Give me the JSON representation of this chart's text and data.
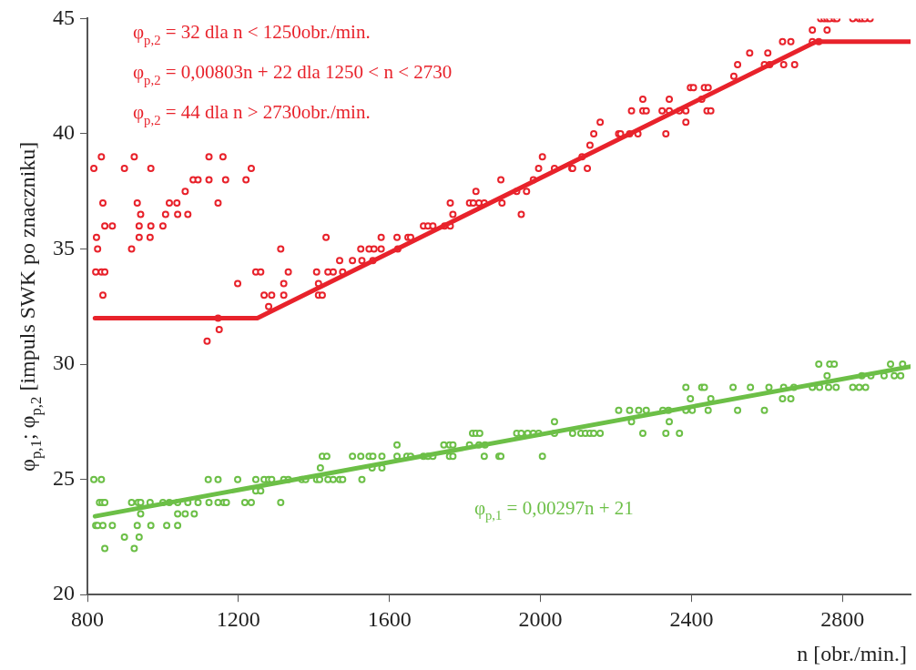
{
  "chart_data": {
    "type": "scatter",
    "xlabel": "n [obr./min.]",
    "ylabel": "φ$_{p,1}$; φ$_{p,2}$ [impuls SWK po znaczniku]",
    "xlim": [
      800,
      2980
    ],
    "xticks": [
      800,
      1200,
      1600,
      2000,
      2400,
      2800
    ],
    "ylim": [
      20,
      45
    ],
    "yticks": [
      20,
      25,
      30,
      35,
      40,
      45
    ],
    "marker": "circle",
    "legend": false,
    "annotations": [
      "φ$_{p,2}$ = 32 dla n < 1250obr./min.",
      "φ$_{p,2}$ = 0,00803n + 22 dla 1250 < n < 2730",
      "φ$_{p,2}$ = 44 dla n > 2730obr./min.",
      "φ$_{p,1}$ = 0,00297n + 21"
    ],
    "series": [
      {
        "color": "#e8222b",
        "x": [
          817,
          837,
          824,
          827,
          822,
          837,
          846,
          841,
          846,
          866,
          841,
          898,
          924,
          917,
          932,
          941,
          937,
          937,
          968,
          968,
          966,
          1000,
          1007,
          1017,
          1037,
          1039,
          1059,
          1066,
          1080,
          1093,
          1122,
          1122,
          1146,
          1159,
          1166,
          1220,
          1234,
          1198,
          1117,
          1149,
          1146,
          1246,
          1259,
          1268,
          1288,
          1280,
          1312,
          1320,
          1320,
          1332,
          1407,
          1437,
          1451,
          1476,
          1412,
          1412,
          1422,
          1432,
          1468,
          1502,
          1524,
          1527,
          1546,
          1559,
          1556,
          1578,
          1578,
          1620,
          1622,
          1649,
          1656,
          1690,
          1702,
          1715,
          1746,
          1761,
          1761,
          1768,
          1812,
          1822,
          1829,
          1837,
          1851,
          1895,
          1898,
          1937,
          1949,
          1963,
          1981,
          1995,
          2005,
          2037,
          2083,
          2085,
          2110,
          2124,
          2131,
          2141,
          2158,
          2207,
          2212,
          2236,
          2241,
          2258,
          2271,
          2271,
          2280,
          2322,
          2332,
          2341,
          2341,
          2368,
          2385,
          2385,
          2397,
          2405,
          2427,
          2434,
          2444,
          2441,
          2451,
          2512,
          2522,
          2554,
          2593,
          2602,
          2607,
          2641,
          2644,
          2663,
          2673,
          2720,
          2720,
          2737,
          2759,
          2742,
          2751,
          2759,
          2766,
          2778,
          2785,
          2827,
          2844,
          2851,
          2859,
          2873
        ],
        "values": [
          38.5,
          39,
          35.5,
          35,
          34,
          34,
          34,
          37,
          36,
          36,
          33,
          38.5,
          39,
          35,
          37,
          36.5,
          36,
          35.5,
          38.5,
          36,
          35.5,
          36,
          36.5,
          37,
          37,
          36.5,
          37.5,
          36.5,
          38,
          38,
          39,
          38,
          37,
          39,
          38,
          38,
          38.5,
          33.5,
          31,
          31.5,
          32,
          34,
          34,
          33,
          33,
          32.5,
          35,
          33.5,
          33,
          34,
          34,
          34,
          34,
          34,
          33.5,
          33,
          33,
          35.5,
          34.5,
          34.5,
          35,
          34.5,
          35,
          35,
          34.5,
          35.5,
          35,
          35.5,
          35,
          35.5,
          35.5,
          36,
          36,
          36,
          36,
          36,
          37,
          36.5,
          37,
          37,
          37.5,
          37,
          37,
          38,
          37,
          37.5,
          36.5,
          37.5,
          38,
          38.5,
          39,
          38.5,
          38.5,
          38.5,
          39,
          38.5,
          39.5,
          40,
          40.5,
          40,
          40,
          40,
          41,
          40,
          41.5,
          41,
          41,
          41,
          40,
          41.5,
          41,
          41,
          40.5,
          41,
          42,
          42,
          41.5,
          42,
          42,
          41,
          41,
          42.5,
          43,
          43.5,
          43,
          43.5,
          43,
          44,
          43,
          44,
          43,
          44.5,
          44,
          44,
          44.5,
          45,
          45,
          45,
          45,
          45,
          45,
          45,
          45,
          45,
          45,
          45
        ]
      },
      {
        "type": "line",
        "marker": "none",
        "color": "#e8222b",
        "x": [
          820,
          1250,
          2730,
          2980
        ],
        "values": [
          32,
          32,
          44,
          44
        ]
      },
      {
        "color": "#6cbf47",
        "x": [
          817,
          837,
          832,
          839,
          846,
          822,
          827,
          841,
          846,
          866,
          898,
          917,
          924,
          932,
          937,
          934,
          941,
          941,
          966,
          968,
          1000,
          1010,
          1017,
          1039,
          1039,
          1039,
          1059,
          1066,
          1083,
          1093,
          1120,
          1122,
          1146,
          1146,
          1161,
          1168,
          1198,
          1217,
          1234,
          1246,
          1246,
          1259,
          1268,
          1280,
          1288,
          1312,
          1320,
          1332,
          1368,
          1378,
          1407,
          1415,
          1417,
          1422,
          1434,
          1437,
          1451,
          1468,
          1476,
          1502,
          1524,
          1527,
          1546,
          1556,
          1554,
          1580,
          1580,
          1620,
          1620,
          1646,
          1656,
          1690,
          1702,
          1715,
          1744,
          1759,
          1759,
          1768,
          1768,
          1812,
          1820,
          1829,
          1839,
          1837,
          1853,
          1851,
          1890,
          1895,
          1937,
          1949,
          1966,
          1981,
          1995,
          2005,
          2037,
          2037,
          2085,
          2107,
          2119,
          2131,
          2141,
          2158,
          2207,
          2236,
          2241,
          2260,
          2271,
          2280,
          2324,
          2332,
          2341,
          2339,
          2368,
          2385,
          2385,
          2397,
          2402,
          2427,
          2434,
          2444,
          2451,
          2510,
          2522,
          2556,
          2593,
          2605,
          2641,
          2644,
          2663,
          2671,
          2720,
          2737,
          2739,
          2759,
          2763,
          2766,
          2778,
          2783,
          2827,
          2844,
          2851,
          2861,
          2875,
          2910,
          2927,
          2937,
          2954,
          2959
        ],
        "values": [
          25,
          25,
          24,
          24,
          24,
          23,
          23,
          23,
          22,
          23,
          22.5,
          24,
          22,
          23,
          22.5,
          24,
          24,
          23.5,
          24,
          23,
          24,
          23,
          24,
          24,
          23.5,
          23,
          23.5,
          24,
          23.5,
          24,
          25,
          24,
          25,
          24,
          24,
          24,
          25,
          24,
          24,
          25,
          24.5,
          24.5,
          25,
          25,
          25,
          24,
          25,
          25,
          25,
          25,
          25,
          25,
          25.5,
          26,
          26,
          25,
          25,
          25,
          25,
          26,
          26,
          25,
          26,
          26,
          25.5,
          26,
          25.5,
          26.5,
          26,
          26,
          26,
          26,
          26,
          26,
          26.5,
          26.5,
          26,
          26,
          26.5,
          26.5,
          27,
          27,
          27,
          26.5,
          26.5,
          26,
          26,
          26,
          27,
          27,
          27,
          27,
          27,
          26,
          27.5,
          27,
          27,
          27,
          27,
          27,
          27,
          27,
          28,
          28,
          27.5,
          28,
          27,
          28,
          28,
          27,
          27.5,
          28,
          27,
          28,
          29,
          28.5,
          28,
          29,
          29,
          28,
          28.5,
          29,
          28,
          29,
          28,
          29,
          28.5,
          29,
          28.5,
          29,
          29,
          30,
          29,
          29.5,
          29,
          30,
          30,
          29,
          29,
          29,
          29.5,
          29,
          29.5,
          29.5,
          30,
          29.5,
          29.5,
          30
        ]
      },
      {
        "type": "line",
        "marker": "none",
        "color": "#6cbf47",
        "x": [
          820,
          2980
        ],
        "values": [
          23.4,
          29.9
        ]
      }
    ]
  }
}
